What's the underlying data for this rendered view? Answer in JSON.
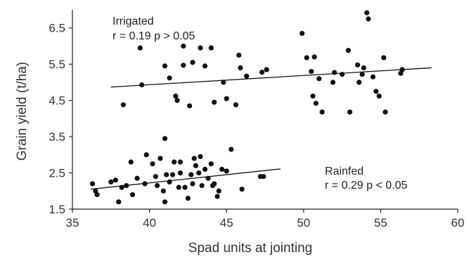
{
  "chart_data": {
    "type": "scatter",
    "title": "",
    "xlabel": "Spad units at jointing",
    "ylabel": "Grain yield (t/ha)",
    "xlim": [
      35,
      60
    ],
    "ylim": [
      1.5,
      7.0
    ],
    "x_ticks": [
      35,
      40,
      45,
      50,
      55,
      60
    ],
    "y_ticks": [
      1.5,
      2.5,
      3.5,
      4.5,
      5.5,
      6.5
    ],
    "x_tick_labels": [
      "35",
      "40",
      "45",
      "50",
      "55",
      "60"
    ],
    "y_tick_labels": [
      "1.5",
      "2.5",
      "3.5",
      "4.5",
      "5.5",
      "6.5"
    ],
    "grid": false,
    "point_color": "#111111",
    "series": [
      {
        "name": "Irrigated",
        "stat": "r = 0.19 p > 0.05",
        "trendline": {
          "x": [
            37.5,
            58.3
          ],
          "y": [
            4.87,
            5.4
          ]
        },
        "points": [
          [
            39.4,
            5.95
          ],
          [
            39.5,
            4.93
          ],
          [
            38.3,
            4.38
          ],
          [
            41.0,
            5.45
          ],
          [
            41.3,
            5.12
          ],
          [
            41.7,
            4.62
          ],
          [
            41.8,
            4.5
          ],
          [
            42.2,
            6.0
          ],
          [
            42.2,
            5.47
          ],
          [
            42.6,
            4.35
          ],
          [
            42.8,
            5.55
          ],
          [
            43.3,
            5.95
          ],
          [
            43.6,
            5.45
          ],
          [
            44.0,
            5.95
          ],
          [
            44.2,
            4.45
          ],
          [
            44.8,
            5.0
          ],
          [
            45.0,
            4.55
          ],
          [
            45.6,
            4.38
          ],
          [
            45.8,
            5.75
          ],
          [
            45.9,
            5.4
          ],
          [
            46.3,
            5.17
          ],
          [
            47.3,
            5.28
          ],
          [
            47.6,
            5.35
          ],
          [
            49.9,
            6.35
          ],
          [
            50.2,
            5.68
          ],
          [
            50.5,
            5.3
          ],
          [
            50.6,
            4.62
          ],
          [
            50.7,
            5.7
          ],
          [
            50.8,
            4.42
          ],
          [
            51.0,
            5.1
          ],
          [
            51.2,
            4.18
          ],
          [
            51.9,
            5.0
          ],
          [
            52.0,
            5.27
          ],
          [
            52.5,
            5.22
          ],
          [
            52.9,
            5.88
          ],
          [
            53.0,
            4.18
          ],
          [
            53.5,
            5.48
          ],
          [
            53.6,
            5.0
          ],
          [
            53.8,
            5.22
          ],
          [
            53.9,
            5.4
          ],
          [
            54.1,
            6.92
          ],
          [
            54.2,
            6.75
          ],
          [
            54.5,
            5.15
          ],
          [
            54.7,
            4.75
          ],
          [
            54.9,
            4.62
          ],
          [
            55.2,
            5.68
          ],
          [
            55.3,
            4.18
          ],
          [
            56.3,
            5.25
          ],
          [
            56.4,
            5.35
          ]
        ]
      },
      {
        "name": "Rainfed",
        "stat": "r = 0.29 p < 0.05",
        "trendline": {
          "x": [
            36.2,
            48.5
          ],
          "y": [
            2.05,
            2.61
          ]
        },
        "points": [
          [
            36.3,
            2.2
          ],
          [
            36.5,
            2.0
          ],
          [
            36.6,
            1.9
          ],
          [
            37.5,
            2.25
          ],
          [
            37.8,
            2.3
          ],
          [
            38.0,
            1.7
          ],
          [
            38.2,
            2.1
          ],
          [
            38.5,
            2.15
          ],
          [
            38.8,
            2.8
          ],
          [
            38.9,
            1.9
          ],
          [
            39.2,
            2.35
          ],
          [
            39.7,
            2.2
          ],
          [
            39.8,
            3.0
          ],
          [
            40.2,
            2.75
          ],
          [
            40.4,
            2.4
          ],
          [
            40.5,
            2.15
          ],
          [
            40.7,
            2.9
          ],
          [
            40.9,
            2.0
          ],
          [
            41.0,
            1.7
          ],
          [
            41.0,
            3.45
          ],
          [
            41.1,
            2.45
          ],
          [
            41.3,
            2.25
          ],
          [
            41.5,
            2.45
          ],
          [
            41.6,
            2.8
          ],
          [
            41.9,
            2.1
          ],
          [
            42.0,
            2.8
          ],
          [
            42.0,
            2.5
          ],
          [
            42.3,
            2.1
          ],
          [
            42.5,
            1.8
          ],
          [
            42.7,
            2.45
          ],
          [
            42.8,
            2.2
          ],
          [
            42.9,
            2.9
          ],
          [
            43.0,
            2.7
          ],
          [
            43.2,
            2.5
          ],
          [
            43.3,
            2.95
          ],
          [
            43.4,
            2.15
          ],
          [
            43.6,
            2.6
          ],
          [
            43.8,
            2.35
          ],
          [
            44.0,
            2.75
          ],
          [
            44.1,
            2.15
          ],
          [
            44.2,
            2.2
          ],
          [
            44.4,
            1.85
          ],
          [
            44.5,
            2.0
          ],
          [
            44.7,
            2.6
          ],
          [
            45.0,
            2.55
          ],
          [
            45.3,
            3.15
          ],
          [
            46.0,
            2.05
          ],
          [
            47.2,
            2.4
          ],
          [
            47.4,
            2.4
          ]
        ]
      }
    ]
  }
}
